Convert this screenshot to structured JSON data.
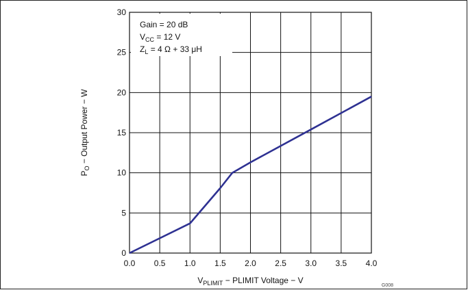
{
  "chart_data": {
    "type": "line",
    "title": "",
    "xlabel": {
      "main": "V",
      "sub": "PLIMIT",
      "rest": " − PLIMIT Voltage − V"
    },
    "ylabel": {
      "main": "P",
      "sub": "O",
      "rest": " − Output Power − W"
    },
    "xlim": [
      0,
      4
    ],
    "ylim": [
      0,
      30
    ],
    "xticks": [
      0,
      0.5,
      1,
      1.5,
      2,
      2.5,
      3,
      3.5,
      4
    ],
    "yticks": [
      0,
      5,
      10,
      15,
      20,
      25,
      30
    ],
    "xtick_labels": [
      "0.0",
      "0.5",
      "1.0",
      "1.5",
      "2.0",
      "2.5",
      "3.0",
      "3.5",
      "4.0"
    ],
    "ytick_labels": [
      "0",
      "5",
      "10",
      "15",
      "20",
      "25",
      "30"
    ],
    "grid": true,
    "series": [
      {
        "color": "#2e3192",
        "x": [
          0,
          1.0,
          1.5,
          1.7,
          2.0,
          3.0,
          4.0
        ],
        "y": [
          0,
          3.7,
          8.1,
          10.0,
          11.3,
          15.4,
          19.5
        ]
      }
    ],
    "annotations": [
      {
        "main": "Gain = 20 dB",
        "sub": "",
        "rest": ""
      },
      {
        "main": "V",
        "sub": "CC",
        "rest": " = 12 V"
      },
      {
        "main": "Z",
        "sub": "L",
        "rest": " = 4 Ω + 33 μH"
      }
    ],
    "figure_code": "G008"
  }
}
